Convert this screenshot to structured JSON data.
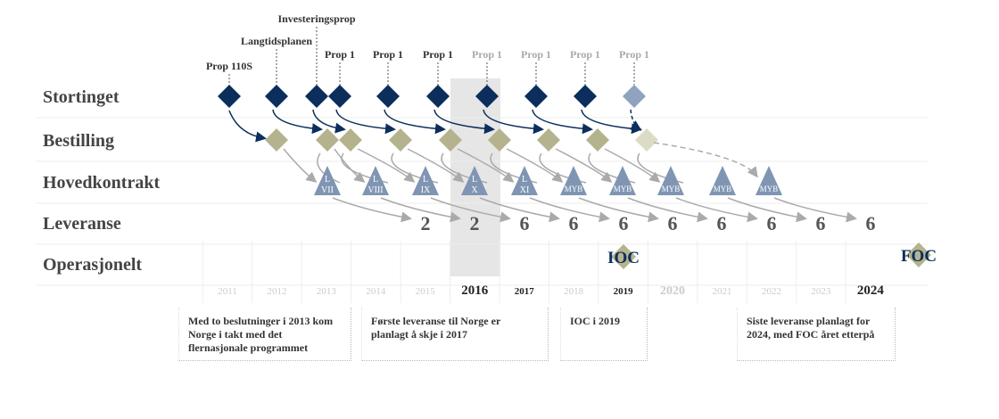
{
  "rows": [
    "Stortinget",
    "Bestilling",
    "Hovedkontrakt",
    "Leveranse",
    "Operasjonelt"
  ],
  "years": [
    "2011",
    "2012",
    "2013",
    "2014",
    "2015",
    "2016",
    "2017",
    "2018",
    "2019",
    "2020",
    "2021",
    "2022",
    "2023",
    "2024"
  ],
  "stortinget": [
    "Prop 110S",
    "Langtidsplanen",
    "Investeringsprop",
    "Prop 1",
    "Prop 1",
    "Prop 1",
    "Prop 1",
    "Prop 1",
    "Prop 1",
    "Prop 1"
  ],
  "hovedkontrakt": [
    {
      "top": "L",
      "bottom": "VII"
    },
    {
      "top": "L",
      "bottom": "VIII"
    },
    {
      "top": "L",
      "bottom": "IX"
    },
    {
      "top": "L",
      "bottom": "X"
    },
    {
      "top": "L",
      "bottom": "XI"
    },
    {
      "top": "MYB"
    },
    {
      "top": "MYB"
    },
    {
      "top": "MYB"
    },
    {
      "top": "MYB"
    },
    {
      "top": "MYB"
    }
  ],
  "leveranse": [
    "2",
    "2",
    "6",
    "6",
    "6",
    "6",
    "6",
    "6",
    "6",
    "6"
  ],
  "operasjonelt": [
    "IOC",
    "FOC"
  ],
  "notes": [
    "Med to beslutninger i 2013 kom Norge i takt med det flernasjonale programmet",
    "Første leveranse til Norge er planlagt å skje i 2017",
    "IOC i 2019",
    "Siste leveranse planlagt for 2024, med FOC året etterpå"
  ]
}
